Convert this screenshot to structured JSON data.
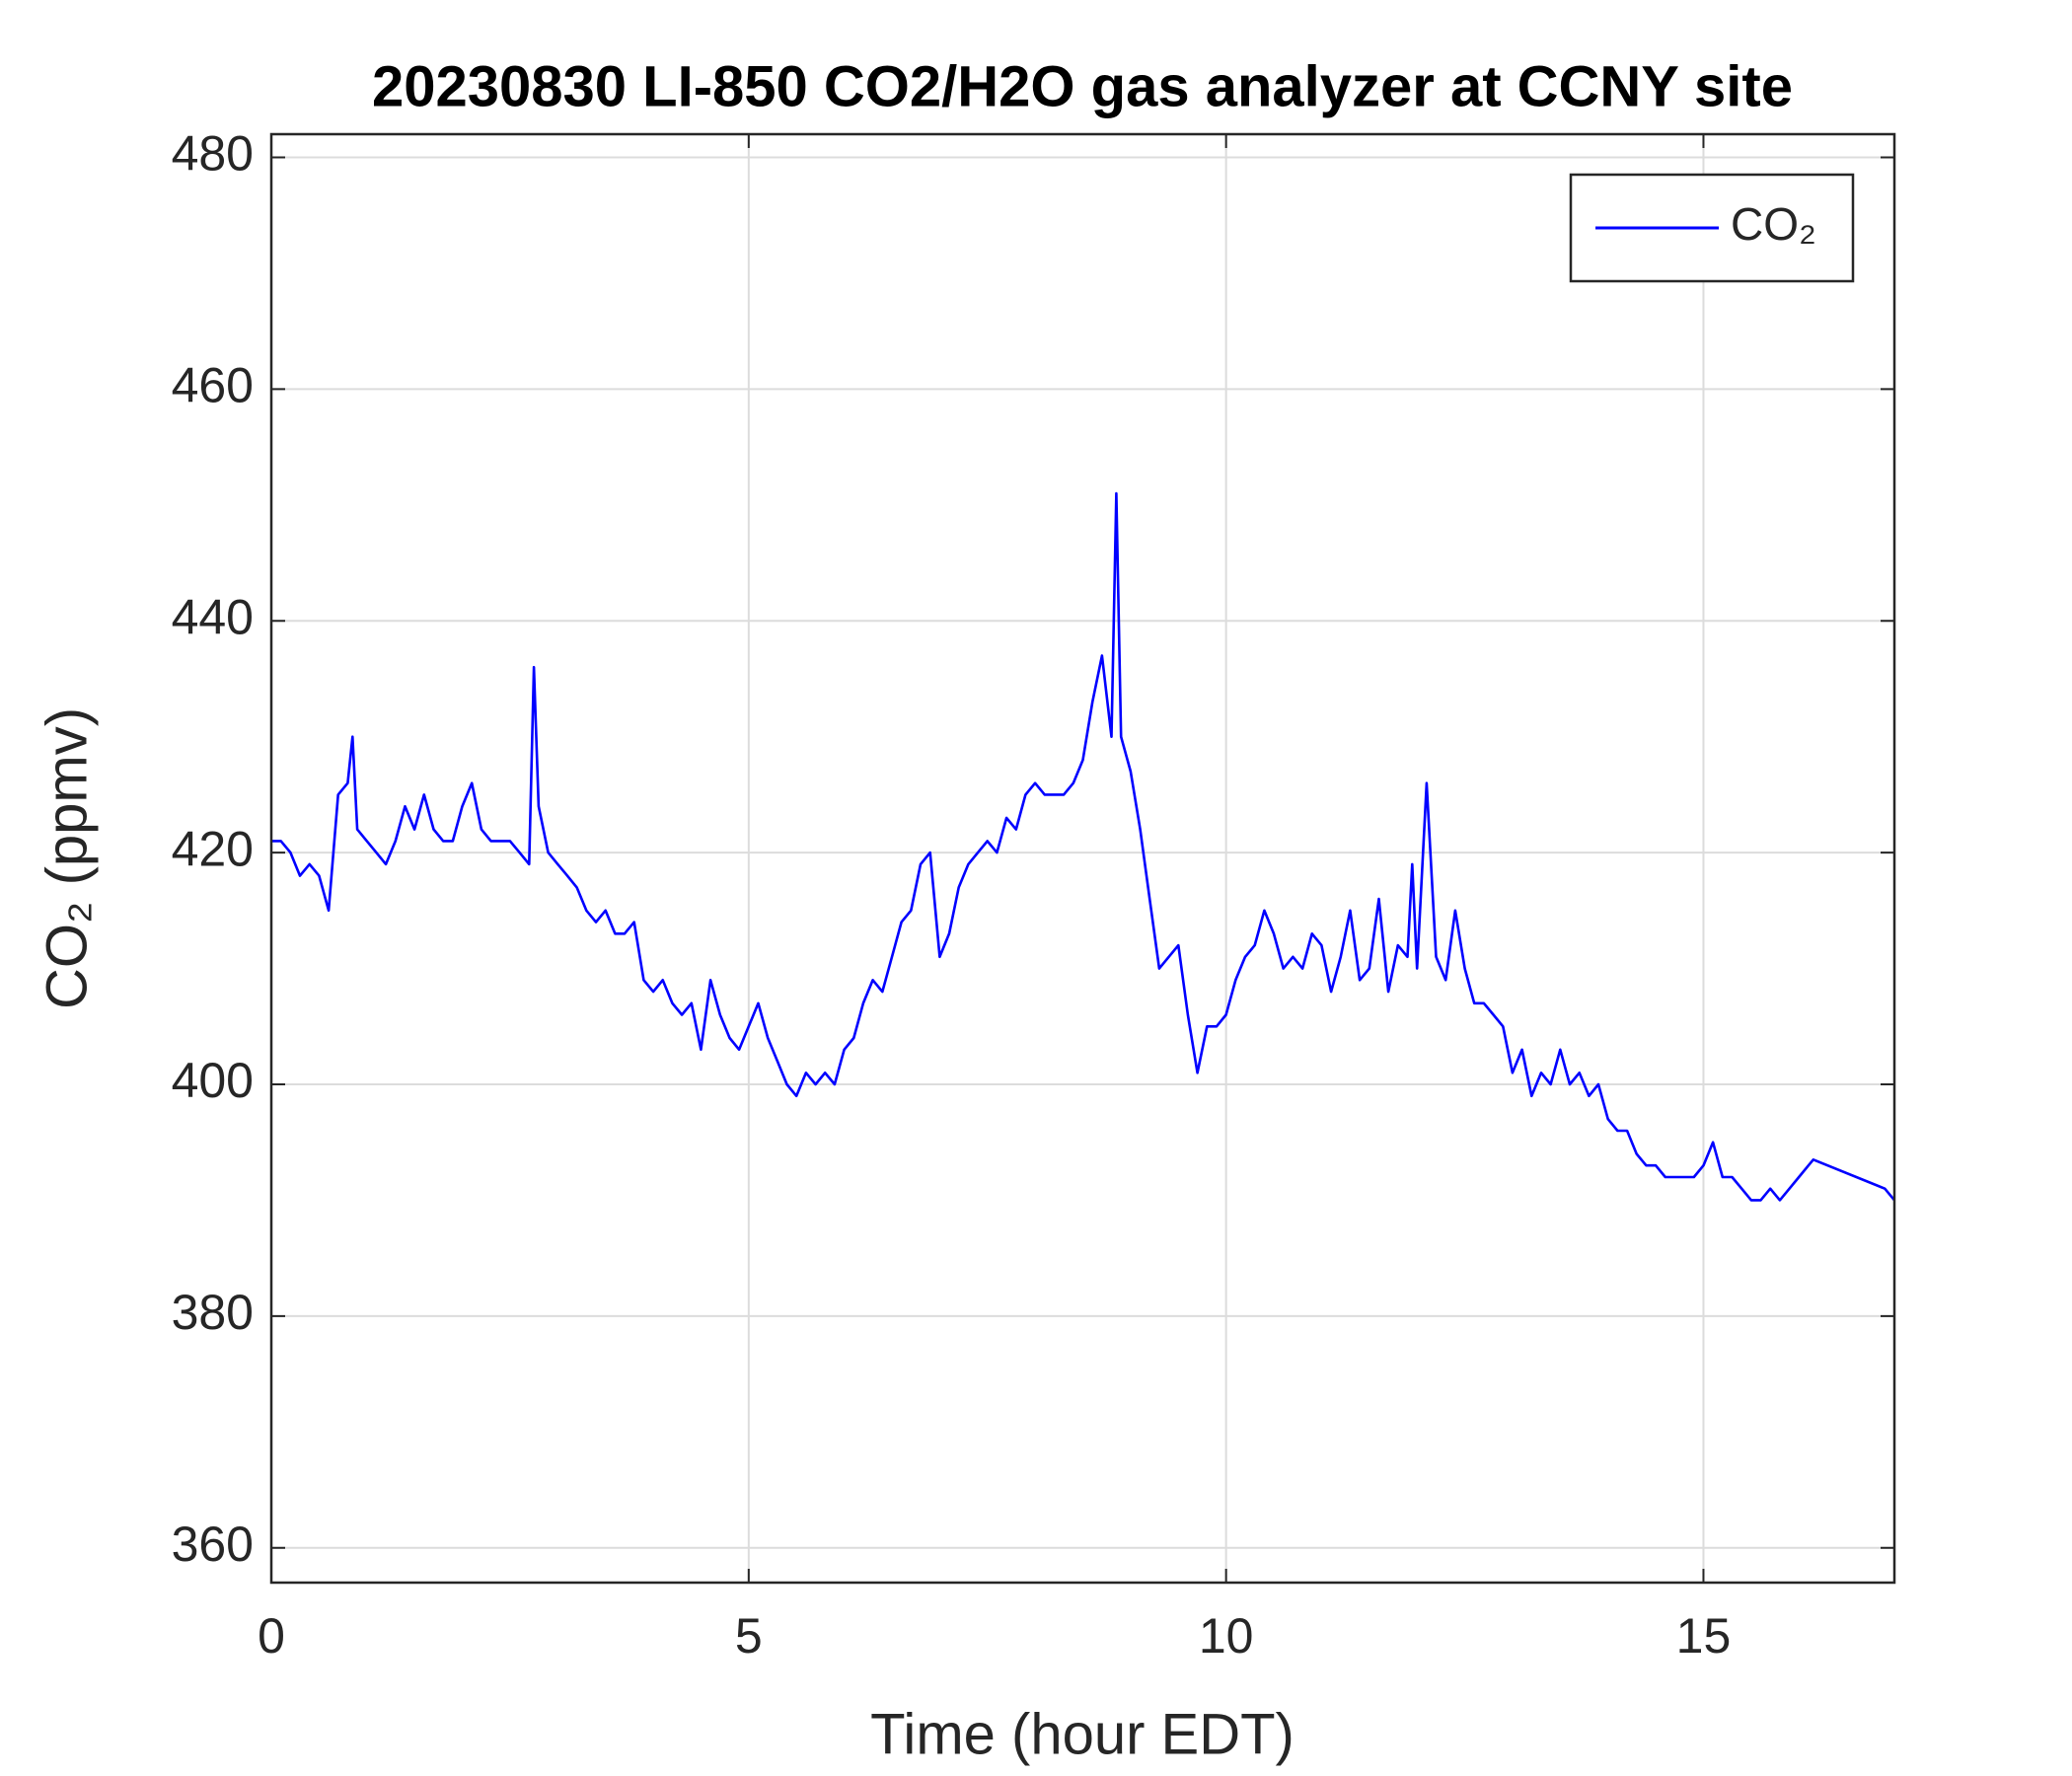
{
  "chart_data": {
    "type": "line",
    "title": "20230830 LI-850 CO2/H2O gas analyzer at CCNY site",
    "xlabel": "Time (hour EDT)",
    "ylabel": "CO₂ (ppmv)",
    "x": [
      0,
      0.1,
      0.2,
      0.3,
      0.4,
      0.5,
      0.6,
      0.7,
      0.8,
      0.85,
      0.9,
      1.0,
      1.1,
      1.2,
      1.3,
      1.4,
      1.5,
      1.6,
      1.7,
      1.8,
      1.9,
      2.0,
      2.1,
      2.2,
      2.3,
      2.4,
      2.5,
      2.6,
      2.7,
      2.75,
      2.8,
      2.9,
      3.0,
      3.1,
      3.2,
      3.3,
      3.4,
      3.5,
      3.6,
      3.7,
      3.8,
      3.9,
      4.0,
      4.1,
      4.2,
      4.3,
      4.4,
      4.5,
      4.6,
      4.7,
      4.8,
      4.9,
      5.0,
      5.1,
      5.2,
      5.3,
      5.4,
      5.5,
      5.6,
      5.7,
      5.8,
      5.9,
      6.0,
      6.1,
      6.2,
      6.3,
      6.4,
      6.5,
      6.6,
      6.7,
      6.8,
      6.9,
      7.0,
      7.1,
      7.2,
      7.3,
      7.4,
      7.5,
      7.6,
      7.7,
      7.8,
      7.9,
      8.0,
      8.1,
      8.2,
      8.3,
      8.4,
      8.5,
      8.6,
      8.7,
      8.8,
      8.85,
      8.9,
      9.0,
      9.1,
      9.2,
      9.3,
      9.4,
      9.5,
      9.6,
      9.7,
      9.8,
      9.9,
      10.0,
      10.1,
      10.2,
      10.3,
      10.4,
      10.5,
      10.6,
      10.7,
      10.8,
      10.9,
      11.0,
      11.1,
      11.2,
      11.3,
      11.4,
      11.5,
      11.6,
      11.7,
      11.8,
      11.9,
      11.95,
      12.0,
      12.1,
      12.2,
      12.3,
      12.4,
      12.5,
      12.6,
      12.7,
      12.8,
      12.9,
      13.0,
      13.1,
      13.2,
      13.3,
      13.4,
      13.5,
      13.6,
      13.7,
      13.8,
      13.9,
      14.0,
      14.1,
      14.2,
      14.3,
      14.4,
      14.5,
      14.6,
      14.7,
      14.8,
      14.9,
      15.0,
      15.1,
      15.2,
      15.3,
      15.4,
      15.5,
      15.6,
      15.7,
      15.8,
      15.9,
      16.0,
      16.1,
      16.15,
      16.9,
      17.0
    ],
    "series": [
      {
        "name": "CO₂",
        "color": "#0000ff",
        "values": [
          421,
          421,
          420,
          418,
          419,
          418,
          415,
          425,
          426,
          430,
          422,
          421,
          420,
          419,
          421,
          424,
          422,
          425,
          422,
          421,
          421,
          424,
          426,
          422,
          421,
          421,
          421,
          420,
          419,
          436,
          424,
          420,
          419,
          418,
          417,
          415,
          414,
          415,
          413,
          413,
          414,
          409,
          408,
          409,
          407,
          406,
          407,
          403,
          409,
          406,
          404,
          403,
          405,
          407,
          404,
          402,
          400,
          399,
          401,
          400,
          401,
          400,
          403,
          404,
          407,
          409,
          408,
          411,
          414,
          415,
          419,
          420,
          411,
          413,
          417,
          419,
          420,
          421,
          420,
          423,
          422,
          425,
          426,
          425,
          425,
          425,
          426,
          428,
          433,
          437,
          430,
          451,
          430,
          427,
          422,
          416,
          410,
          411,
          412,
          406,
          401,
          405,
          405,
          406,
          409,
          411,
          412,
          415,
          413,
          410,
          411,
          410,
          413,
          412,
          408,
          411,
          415,
          409,
          410,
          416,
          408,
          412,
          411,
          419,
          410,
          426,
          411,
          409,
          415,
          410,
          407,
          407,
          406,
          405,
          401,
          403,
          399,
          401,
          400,
          403,
          400,
          401,
          399,
          400,
          397,
          396,
          396,
          394,
          393,
          393,
          392,
          392,
          392,
          392,
          393,
          395,
          392,
          392,
          391,
          390,
          390,
          391,
          390,
          391,
          392,
          393,
          393.5,
          391,
          390
        ]
      }
    ],
    "xlim": [
      0,
      17
    ],
    "xticks": [
      0,
      5,
      10,
      15
    ],
    "ylim": [
      357,
      482
    ],
    "yticks": [
      360,
      380,
      400,
      420,
      440,
      460,
      480
    ],
    "grid": true,
    "legend": "upper right"
  }
}
